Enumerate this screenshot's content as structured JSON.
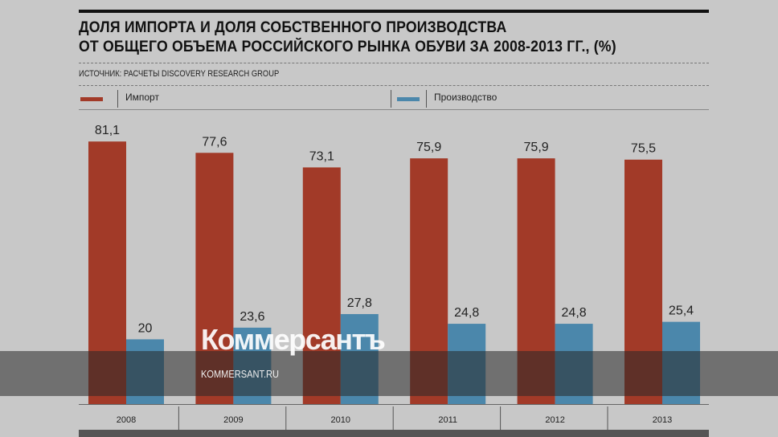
{
  "chart_data": {
    "type": "bar",
    "title": "ДОЛЯ ИМПОРТА И ДОЛЯ СОБСТВЕННОГО ПРОИЗВОДСТВА ОТ ОБЩЕГО ОБЪЕМА РОССИЙСКОГО РЫНКА ОБУВИ ЗА 2008-2013 ГГ., (%)",
    "title_line1": "ДОЛЯ ИМПОРТА И ДОЛЯ СОБСТВЕННОГО ПРОИЗВОДСТВА",
    "title_line2": "ОТ ОБЩЕГО ОБЪЕМА РОССИЙСКОГО РЫНКА ОБУВИ ЗА 2008-2013 ГГ., (%)",
    "source": "ИСТОЧНИК: РАСЧЕТЫ DISCOVERY RESEARCH GROUP",
    "categories": [
      "2008",
      "2009",
      "2010",
      "2011",
      "2012",
      "2013"
    ],
    "series": [
      {
        "name": "Импорт",
        "color": "#a23a28",
        "values": [
          81.1,
          77.6,
          73.1,
          75.9,
          75.9,
          75.5
        ],
        "labels": [
          "81,1",
          "77,6",
          "73,1",
          "75,9",
          "75,9",
          "75,5"
        ]
      },
      {
        "name": "Производство",
        "color": "#4b87ab",
        "values": [
          20,
          23.6,
          27.8,
          24.8,
          24.8,
          25.4
        ],
        "labels": [
          "20",
          "23,6",
          "27,8",
          "24,8",
          "24,8",
          "25,4"
        ]
      }
    ],
    "ylim": [
      0,
      100
    ],
    "legend": "top",
    "grid": false
  },
  "watermark": {
    "logo": "Коммерсантъ",
    "site": "KOMMERSANT.RU"
  }
}
